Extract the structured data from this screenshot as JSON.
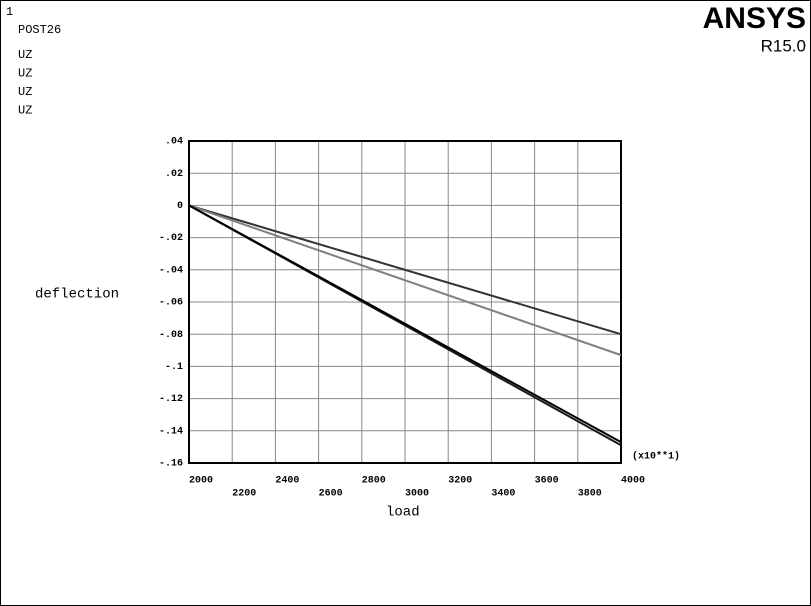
{
  "window_number": "1",
  "program": "POST26",
  "brand": "ANSYS",
  "version": "R15.0",
  "chart_data": {
    "type": "line",
    "x_label": "load",
    "y_label": "deflection",
    "x_multiplier": "(x10**1)",
    "x": [
      2000,
      4000
    ],
    "xlim": [
      2000,
      4000
    ],
    "xticks": [
      2000,
      2200,
      2400,
      2600,
      2800,
      3000,
      3200,
      3400,
      3600,
      3800,
      4000
    ],
    "ylim": [
      -0.16,
      0.04
    ],
    "yticks": [
      {
        "value": 0.04,
        "label": ".04"
      },
      {
        "value": 0.02,
        "label": ".02"
      },
      {
        "value": 0,
        "label": "0"
      },
      {
        "value": -0.02,
        "label": "-.02"
      },
      {
        "value": -0.04,
        "label": "-.04"
      },
      {
        "value": -0.06,
        "label": "-.06"
      },
      {
        "value": -0.08,
        "label": "-.08"
      },
      {
        "value": -0.1,
        "label": "-.1"
      },
      {
        "value": -0.12,
        "label": "-.12"
      },
      {
        "value": -0.14,
        "label": "-.14"
      },
      {
        "value": -0.16,
        "label": "-.16"
      }
    ],
    "grid": true,
    "series": [
      {
        "name": "UZ",
        "color": "#333333",
        "values": [
          0,
          -0.08
        ]
      },
      {
        "name": "UZ",
        "color": "#808080",
        "values": [
          0,
          -0.093
        ]
      },
      {
        "name": "UZ",
        "color": "#1a1a1a",
        "values": [
          0,
          -0.149
        ]
      },
      {
        "name": "UZ",
        "color": "#000000",
        "values": [
          0,
          -0.147
        ]
      }
    ]
  }
}
